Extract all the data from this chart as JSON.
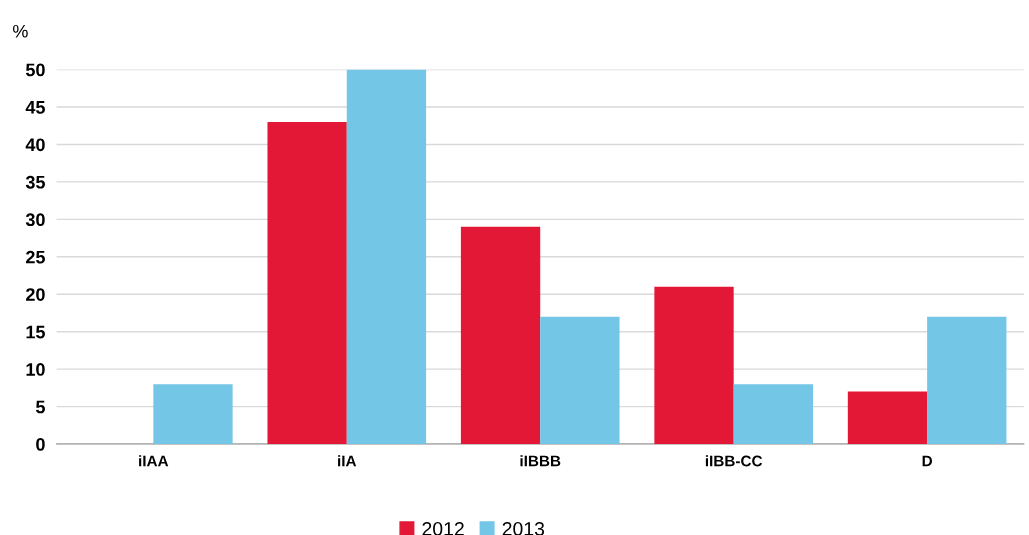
{
  "chart_data": {
    "type": "bar",
    "ylabel": "%",
    "categories": [
      "iIAA",
      "iIA",
      "iIBBB",
      "iIBB-CC",
      "D"
    ],
    "series": [
      {
        "name": "2012",
        "color": "#e31837",
        "values": [
          0,
          43,
          29,
          21,
          7
        ]
      },
      {
        "name": "2013",
        "color": "#73c6e6",
        "values": [
          8,
          50,
          17,
          8,
          17
        ]
      }
    ],
    "ylim": [
      0,
      50
    ],
    "yticks": [
      0,
      5,
      10,
      15,
      20,
      25,
      30,
      35,
      40,
      45,
      50
    ],
    "grid": "y",
    "legend": "bottom"
  }
}
